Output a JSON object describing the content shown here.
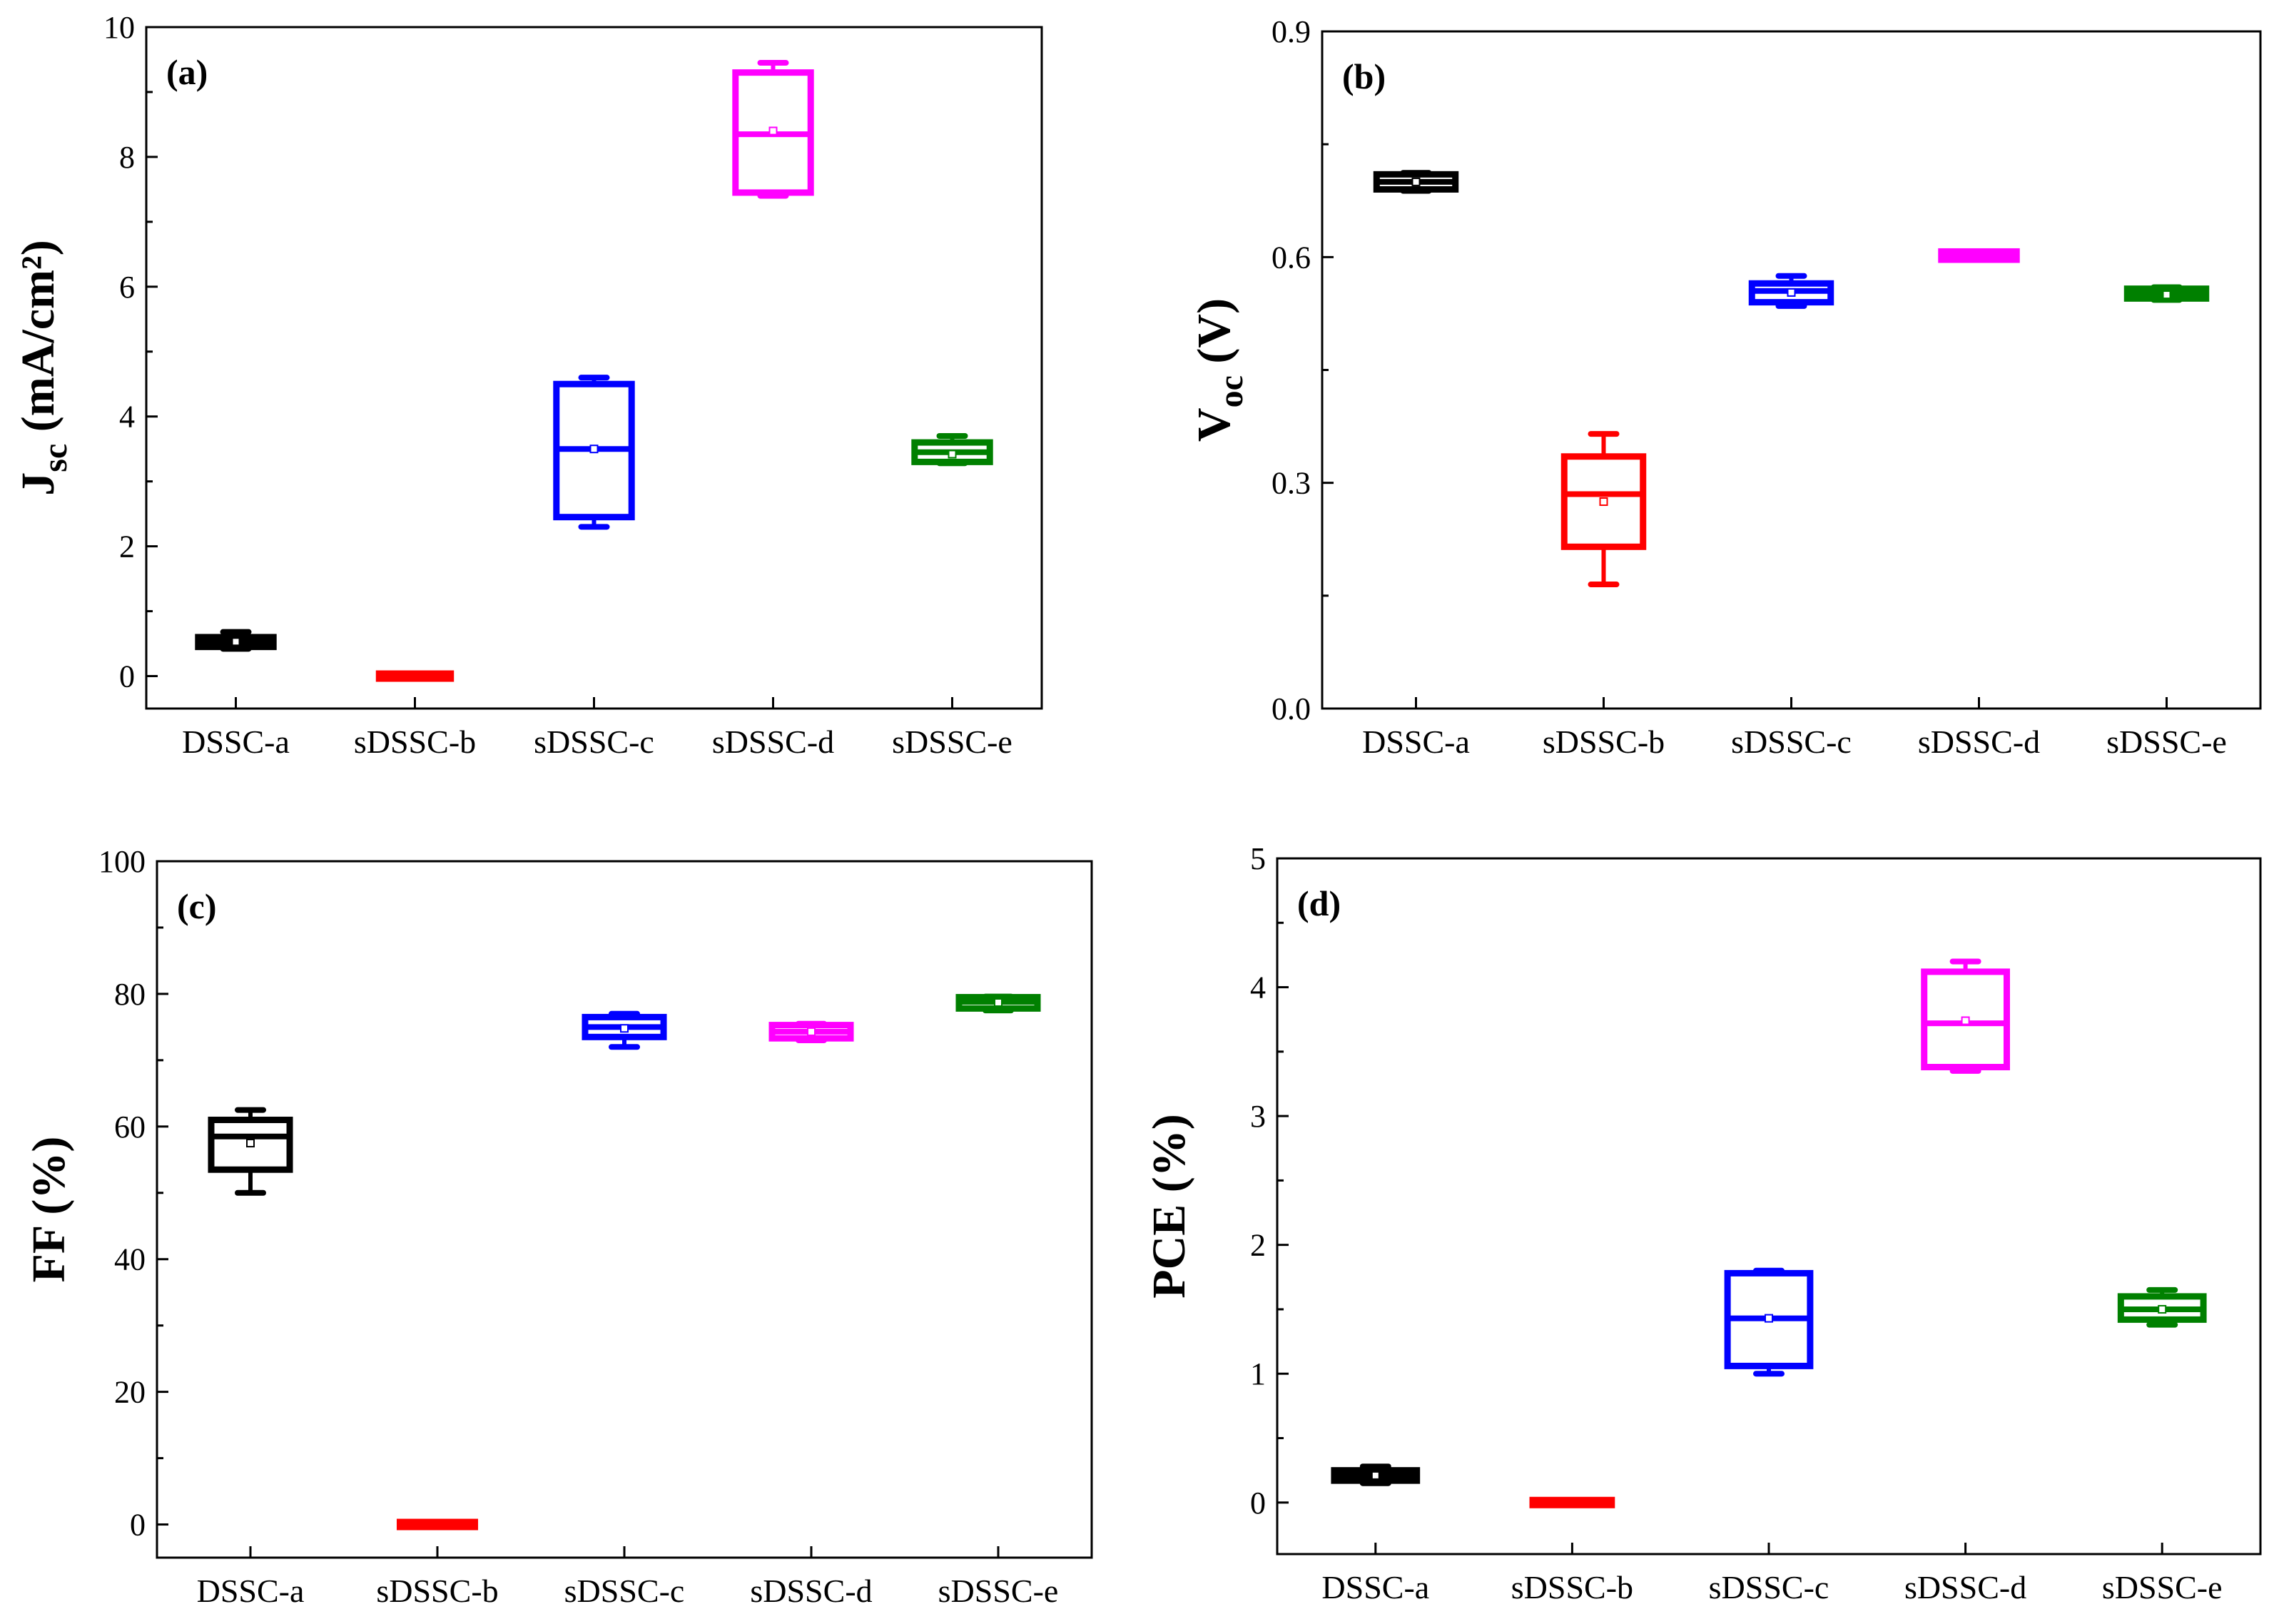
{
  "figure": {
    "colors": {
      "DSSC-a": "#000000",
      "sDSSC-b": "#ff0000",
      "sDSSC-c": "#0000ff",
      "sDSSC-d": "#ff00ff",
      "sDSSC-e": "#008000"
    }
  },
  "chart_data": [
    {
      "type": "box",
      "panel_label": "(a)",
      "ylabel_main": "J",
      "ylabel_sub": "sc",
      "ylabel_rest": " (mA/cm²)",
      "categories": [
        "DSSC-a",
        "sDSSC-b",
        "sDSSC-c",
        "sDSSC-d",
        "sDSSC-e"
      ],
      "ylim": [
        -0.5,
        10
      ],
      "yticks": [
        0,
        2,
        4,
        6,
        8,
        10
      ],
      "ytick_labels": [
        "0",
        "2",
        "4",
        "6",
        "8",
        "10"
      ],
      "boxes": [
        {
          "q1": 0.45,
          "median": 0.53,
          "q3": 0.6,
          "mean": 0.53,
          "min": 0.42,
          "max": 0.68
        },
        {
          "q1": 0.0,
          "median": 0.0,
          "q3": 0.0,
          "mean": 0.0,
          "min": 0.0,
          "max": 0.0
        },
        {
          "q1": 2.45,
          "median": 3.5,
          "q3": 4.5,
          "mean": 3.5,
          "min": 2.3,
          "max": 4.6
        },
        {
          "q1": 7.45,
          "median": 8.35,
          "q3": 9.3,
          "mean": 8.4,
          "min": 7.4,
          "max": 9.45
        },
        {
          "q1": 3.3,
          "median": 3.45,
          "q3": 3.6,
          "mean": 3.42,
          "min": 3.28,
          "max": 3.7
        }
      ]
    },
    {
      "type": "box",
      "panel_label": "(b)",
      "ylabel_main": "V",
      "ylabel_sub": "oc",
      "ylabel_rest": " (V)",
      "categories": [
        "DSSC-a",
        "sDSSC-b",
        "sDSSC-c",
        "sDSSC-d",
        "sDSSC-e"
      ],
      "ylim": [
        0.0,
        0.9
      ],
      "yticks": [
        0.0,
        0.3,
        0.6,
        0.9
      ],
      "ytick_labels": [
        "0.0",
        "0.3",
        "0.6",
        "0.9"
      ],
      "boxes": [
        {
          "q1": 0.69,
          "median": 0.7,
          "q3": 0.71,
          "mean": 0.7,
          "min": 0.688,
          "max": 0.712
        },
        {
          "q1": 0.215,
          "median": 0.285,
          "q3": 0.335,
          "mean": 0.275,
          "min": 0.165,
          "max": 0.365
        },
        {
          "q1": 0.54,
          "median": 0.555,
          "q3": 0.565,
          "mean": 0.553,
          "min": 0.535,
          "max": 0.575
        },
        {
          "q1": 0.597,
          "median": 0.602,
          "q3": 0.607,
          "mean": 0.602,
          "min": 0.595,
          "max": 0.609
        },
        {
          "q1": 0.545,
          "median": 0.55,
          "q3": 0.558,
          "mean": 0.55,
          "min": 0.543,
          "max": 0.56
        }
      ]
    },
    {
      "type": "box",
      "panel_label": "(c)",
      "ylabel_main": "FF (%)",
      "ylabel_sub": "",
      "ylabel_rest": "",
      "categories": [
        "DSSC-a",
        "sDSSC-b",
        "sDSSC-c",
        "sDSSC-d",
        "sDSSC-e"
      ],
      "ylim": [
        -5,
        100
      ],
      "yticks": [
        0,
        20,
        40,
        60,
        80,
        100
      ],
      "ytick_labels": [
        "0",
        "20",
        "40",
        "60",
        "80",
        "100"
      ],
      "boxes": [
        {
          "q1": 53.5,
          "median": 58.5,
          "q3": 61,
          "mean": 57.5,
          "min": 50,
          "max": 62.5
        },
        {
          "q1": 0,
          "median": 0,
          "q3": 0,
          "mean": 0,
          "min": 0,
          "max": 0
        },
        {
          "q1": 73.5,
          "median": 75,
          "q3": 76.5,
          "mean": 74.8,
          "min": 72,
          "max": 77
        },
        {
          "q1": 73.3,
          "median": 74.3,
          "q3": 75.3,
          "mean": 74.3,
          "min": 73,
          "max": 75.5
        },
        {
          "q1": 77.8,
          "median": 78.8,
          "q3": 79.5,
          "mean": 78.7,
          "min": 77.5,
          "max": 79.6
        }
      ]
    },
    {
      "type": "box",
      "panel_label": "(d)",
      "ylabel_main": "PCE (%)",
      "ylabel_sub": "",
      "ylabel_rest": "",
      "categories": [
        "DSSC-a",
        "sDSSC-b",
        "sDSSC-c",
        "sDSSC-d",
        "sDSSC-e"
      ],
      "ylim": [
        -0.4,
        5
      ],
      "yticks": [
        0,
        1,
        2,
        3,
        4,
        5
      ],
      "ytick_labels": [
        "0",
        "1",
        "2",
        "3",
        "4",
        "5"
      ],
      "boxes": [
        {
          "q1": 0.17,
          "median": 0.21,
          "q3": 0.25,
          "mean": 0.21,
          "min": 0.15,
          "max": 0.28
        },
        {
          "q1": 0.0,
          "median": 0.0,
          "q3": 0.0,
          "mean": 0.0,
          "min": 0.0,
          "max": 0.0
        },
        {
          "q1": 1.06,
          "median": 1.43,
          "q3": 1.78,
          "mean": 1.43,
          "min": 1.0,
          "max": 1.8
        },
        {
          "q1": 3.38,
          "median": 3.72,
          "q3": 4.12,
          "mean": 3.74,
          "min": 3.35,
          "max": 4.2
        },
        {
          "q1": 1.42,
          "median": 1.5,
          "q3": 1.6,
          "mean": 1.5,
          "min": 1.38,
          "max": 1.65
        }
      ]
    }
  ]
}
